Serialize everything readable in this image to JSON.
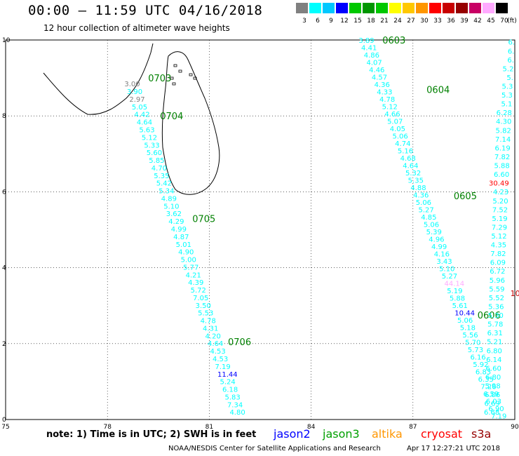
{
  "title": "00:00 – 11:59 UTC 04/16/2018",
  "subtitle": "12 hour collection of altimeter wave heights",
  "scale": {
    "colors": [
      "#808080",
      "#00ffff",
      "#00c8ff",
      "#0000ff",
      "#00c800",
      "#009600",
      "#00c800",
      "#ffff00",
      "#ffc800",
      "#ff9600",
      "#ff0000",
      "#c80000",
      "#960000",
      "#c80064",
      "#ffaaff",
      "#000000"
    ],
    "labels": [
      "3",
      "6",
      "9",
      "12",
      "15",
      "18",
      "21",
      "24",
      "27",
      "30",
      "33",
      "36",
      "39",
      "42",
      "45",
      "70"
    ],
    "unit": "(ft)"
  },
  "axes": {
    "x_ticks": [
      "75",
      "78",
      "81",
      "84",
      "87",
      "90"
    ],
    "y_ticks": [
      "0",
      "2",
      "4",
      "6",
      "8",
      "10"
    ]
  },
  "chart_data": {
    "type": "map",
    "x_range_deg_lon": [
      75,
      90
    ],
    "y_range_deg_lat": [
      0,
      10
    ],
    "grid": "dotted",
    "track_west": {
      "lon_start": 78.5,
      "lat_start": 8.85,
      "lon_end": 81.6,
      "lat_end": 0.2,
      "values": [
        "3.00",
        "3.90",
        "2.97",
        "5.05",
        "4.42",
        "4.64",
        "5.63",
        "5.12",
        "5.33",
        "5.60",
        "5.85",
        "4.70",
        "5.35",
        "5.42",
        "5.34",
        "4.89",
        "5.10",
        "3.62",
        "4.29",
        "4.99",
        "4.87",
        "5.01",
        "4.90",
        "5.00",
        "5.77",
        "4.21",
        "4.39",
        "5.72",
        "7.05",
        "3.50",
        "5.53",
        "4.78",
        "4.31",
        "4.20",
        "4.64",
        "4.53",
        "4.53",
        "7.19",
        "11.44",
        "5.24",
        "6.18",
        "5.83",
        "7.34",
        "4.80"
      ],
      "colors": [
        "#808080",
        "#00ffff",
        "#808080",
        "#00ffff",
        "#00ffff",
        "#00ffff",
        "#00ffff",
        "#00ffff",
        "#00ffff",
        "#00ffff",
        "#00ffff",
        "#00ffff",
        "#00ffff",
        "#00ffff",
        "#00ffff",
        "#00ffff",
        "#00ffff",
        "#00ffff",
        "#00ffff",
        "#00ffff",
        "#00ffff",
        "#00ffff",
        "#00ffff",
        "#00ffff",
        "#00ffff",
        "#00ffff",
        "#00ffff",
        "#00ffff",
        "#00ffff",
        "#00ffff",
        "#00ffff",
        "#00ffff",
        "#00ffff",
        "#00ffff",
        "#00ffff",
        "#00ffff",
        "#00ffff",
        "#00ffff",
        "#0000ff",
        "#00ffff",
        "#00ffff",
        "#00ffff",
        "#00ffff",
        "#00ffff"
      ],
      "time_labels": [
        {
          "text": "0703",
          "lon": 79.2,
          "lat": 9.0
        },
        {
          "text": "0704",
          "lon": 79.55,
          "lat": 8.0
        },
        {
          "text": "0705",
          "lon": 80.5,
          "lat": 5.3
        },
        {
          "text": "0706",
          "lon": 81.55,
          "lat": 2.05
        }
      ]
    },
    "track_east": {
      "lon_start": 85.4,
      "lat_start": 10.0,
      "lon_end": 89.3,
      "lat_end": 0.1,
      "values": [
        "3.89",
        "4.41",
        "4.86",
        "4.07",
        "4.46",
        "4.57",
        "4.36",
        "4.33",
        "4.78",
        "5.12",
        "4.66",
        "5.07",
        "4.05",
        "5.06",
        "4.74",
        "5.16",
        "4.68",
        "4.64",
        "5.32",
        "5.35",
        "4.88",
        "4.36",
        "5.06",
        "5.27",
        "4.85",
        "5.06",
        "5.39",
        "4.96",
        "4.99",
        "4.16",
        "3.43",
        "5.10",
        "5.27",
        "44.14",
        "5.19",
        "5.88",
        "5.61",
        "10.44",
        "5.06",
        "5.18",
        "5.56",
        "5.70",
        "5.73",
        "6.16",
        "5.92",
        "6.83",
        "6.35",
        "7.26",
        "6.59",
        "6.03",
        "6.90",
        "7.19"
      ],
      "colors": [
        "#00ffff",
        "#00ffff",
        "#00ffff",
        "#00ffff",
        "#00ffff",
        "#00ffff",
        "#00ffff",
        "#00ffff",
        "#00ffff",
        "#00ffff",
        "#00ffff",
        "#00ffff",
        "#00ffff",
        "#00ffff",
        "#00ffff",
        "#00ffff",
        "#00ffff",
        "#00ffff",
        "#00ffff",
        "#00ffff",
        "#00ffff",
        "#00ffff",
        "#00ffff",
        "#00ffff",
        "#00ffff",
        "#00ffff",
        "#00ffff",
        "#00ffff",
        "#00ffff",
        "#00ffff",
        "#00ffff",
        "#00ffff",
        "#00ffff",
        "#ffaaff",
        "#00ffff",
        "#00ffff",
        "#00ffff",
        "#0000ff",
        "#00ffff",
        "#00ffff",
        "#00ffff",
        "#00ffff",
        "#00ffff",
        "#00ffff",
        "#00ffff",
        "#00ffff",
        "#00ffff",
        "#00ffff",
        "#00ffff",
        "#00ffff",
        "#00ffff",
        "#00ffff"
      ],
      "time_labels": [
        {
          "text": "0603",
          "lon": 86.1,
          "lat": 10.0
        },
        {
          "text": "0604",
          "lon": 87.4,
          "lat": 8.7
        },
        {
          "text": "0605",
          "lon": 88.2,
          "lat": 5.9
        },
        {
          "text": "0606",
          "lon": 88.9,
          "lat": 2.75
        }
      ]
    },
    "track_far_east": {
      "lon_start": 90.0,
      "lat_start": 9.95,
      "lon_end": 89.55,
      "lat_end": 0.2,
      "values": [
        "6.",
        "6.",
        "6.",
        "5.2",
        "5.",
        "5.3",
        "5.3",
        "5.1",
        "6.28",
        "4.30",
        "5.82",
        "7.14",
        "6.19",
        "7.82",
        "5.88",
        "6.60",
        "30.49",
        "4.23",
        "5.20",
        "7.52",
        "5.19",
        "7.29",
        "5.12",
        "4.35",
        "7.82",
        "6.09",
        "6.72",
        "5.96",
        "5.59",
        "5.52",
        "5.36",
        "5.30",
        "5.78",
        "6.31",
        "5.21",
        "6.80",
        "6.14",
        "6.60",
        "6.80",
        "5.98",
        "6.06",
        "6.69",
        "6.68"
      ],
      "colors": [
        "#00ffff",
        "#00ffff",
        "#00ffff",
        "#00ffff",
        "#00ffff",
        "#00ffff",
        "#00ffff",
        "#00ffff",
        "#00ffff",
        "#00ffff",
        "#00ffff",
        "#00ffff",
        "#00ffff",
        "#00ffff",
        "#00ffff",
        "#00ffff",
        "#ff0000",
        "#00ffff",
        "#00ffff",
        "#00ffff",
        "#00ffff",
        "#00ffff",
        "#00ffff",
        "#00ffff",
        "#00ffff",
        "#00ffff",
        "#00ffff",
        "#00ffff",
        "#00ffff",
        "#00ffff",
        "#00ffff",
        "#00ffff",
        "#00ffff",
        "#00ffff",
        "#00ffff",
        "#00ffff",
        "#00ffff",
        "#00ffff",
        "#00ffff",
        "#00ffff",
        "#00ffff",
        "#00ffff",
        "#00ffff"
      ]
    },
    "edge_label": {
      "text": "10",
      "color": "#c80000",
      "lon": 89.95,
      "lat": 3.25
    }
  },
  "note": "note: 1) Time is in UTC; 2) SWH is in feet",
  "satellites": [
    {
      "name": "jason2",
      "color": "#0000ff"
    },
    {
      "name": "jason3",
      "color": "#00a000"
    },
    {
      "name": "altika",
      "color": "#ff9600"
    },
    {
      "name": "cryosat",
      "color": "#ff0000"
    },
    {
      "name": "s3a",
      "color": "#960000"
    }
  ],
  "footer_left": "NOAA/NESDIS Center for Satellite Applications and Research",
  "footer_right": "Apr 17 12:27:21 UTC 2018"
}
